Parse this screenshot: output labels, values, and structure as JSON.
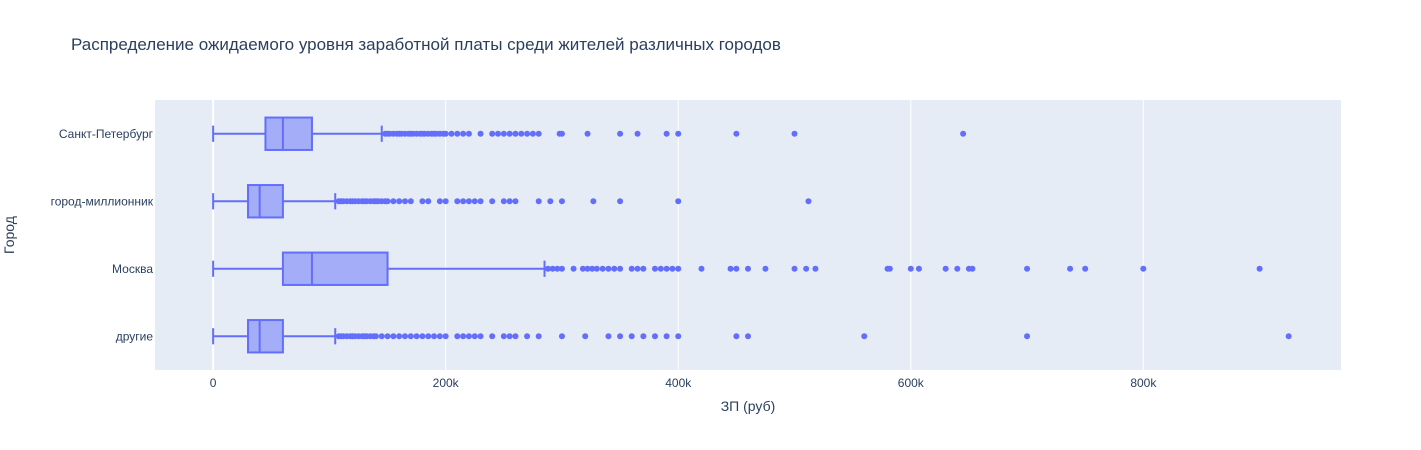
{
  "chart_data": {
    "type": "box",
    "orientation": "horizontal",
    "title": "Распределение ожидаемого уровня заработной платы среди жителей различных городов",
    "xlabel": "ЗП (руб)",
    "ylabel": "Город",
    "xlim": [
      -50000,
      970000
    ],
    "x_ticks": [
      0,
      200000,
      400000,
      600000,
      800000
    ],
    "x_tick_labels": [
      "0",
      "200k",
      "400k",
      "600k",
      "800k"
    ],
    "color": "#636efa",
    "categories": [
      "Санкт-Петербург",
      "город-миллионник",
      "Москва",
      "другие"
    ],
    "boxes": [
      {
        "name": "Санкт-Петербург",
        "min": 0,
        "q1": 45000,
        "median": 60000,
        "q3": 85000,
        "max": 145000,
        "outliers": [
          148000,
          150000,
          152000,
          155000,
          158000,
          160000,
          162000,
          165000,
          168000,
          170000,
          172000,
          175000,
          178000,
          180000,
          182000,
          185000,
          188000,
          190000,
          192000,
          195000,
          198000,
          200000,
          205000,
          210000,
          215000,
          220000,
          230000,
          240000,
          245000,
          250000,
          255000,
          260000,
          265000,
          270000,
          275000,
          280000,
          298000,
          300000,
          322000,
          350000,
          365000,
          390000,
          400000,
          450000,
          500000,
          645000
        ]
      },
      {
        "name": "город-миллионник",
        "min": 0,
        "q1": 30000,
        "median": 40000,
        "q3": 60000,
        "max": 105000,
        "outliers": [
          108000,
          110000,
          112000,
          115000,
          118000,
          120000,
          122000,
          125000,
          128000,
          130000,
          132000,
          135000,
          138000,
          140000,
          142000,
          145000,
          148000,
          150000,
          155000,
          160000,
          165000,
          170000,
          180000,
          185000,
          195000,
          200000,
          210000,
          215000,
          220000,
          225000,
          230000,
          240000,
          250000,
          255000,
          260000,
          280000,
          290000,
          300000,
          327000,
          350000,
          400000,
          512000
        ]
      },
      {
        "name": "Москва",
        "min": 0,
        "q1": 60000,
        "median": 85000,
        "q3": 150000,
        "max": 285000,
        "outliers": [
          288000,
          292000,
          296000,
          300000,
          310000,
          318000,
          322000,
          326000,
          330000,
          335000,
          340000,
          345000,
          350000,
          360000,
          365000,
          370000,
          380000,
          385000,
          390000,
          395000,
          400000,
          420000,
          445000,
          450000,
          460000,
          475000,
          500000,
          510000,
          518000,
          580000,
          582000,
          600000,
          607000,
          630000,
          640000,
          650000,
          653000,
          700000,
          737000,
          750000,
          800000,
          900000
        ]
      },
      {
        "name": "другие",
        "min": 0,
        "q1": 30000,
        "median": 40000,
        "q3": 60000,
        "max": 105000,
        "outliers": [
          108000,
          110000,
          112000,
          115000,
          118000,
          120000,
          122000,
          125000,
          128000,
          130000,
          132000,
          135000,
          138000,
          140000,
          145000,
          150000,
          155000,
          160000,
          165000,
          170000,
          175000,
          180000,
          185000,
          190000,
          195000,
          200000,
          210000,
          215000,
          220000,
          225000,
          230000,
          240000,
          250000,
          255000,
          260000,
          270000,
          280000,
          300000,
          320000,
          340000,
          350000,
          360000,
          370000,
          380000,
          390000,
          400000,
          450000,
          460000,
          560000,
          700000,
          925000
        ]
      }
    ]
  }
}
